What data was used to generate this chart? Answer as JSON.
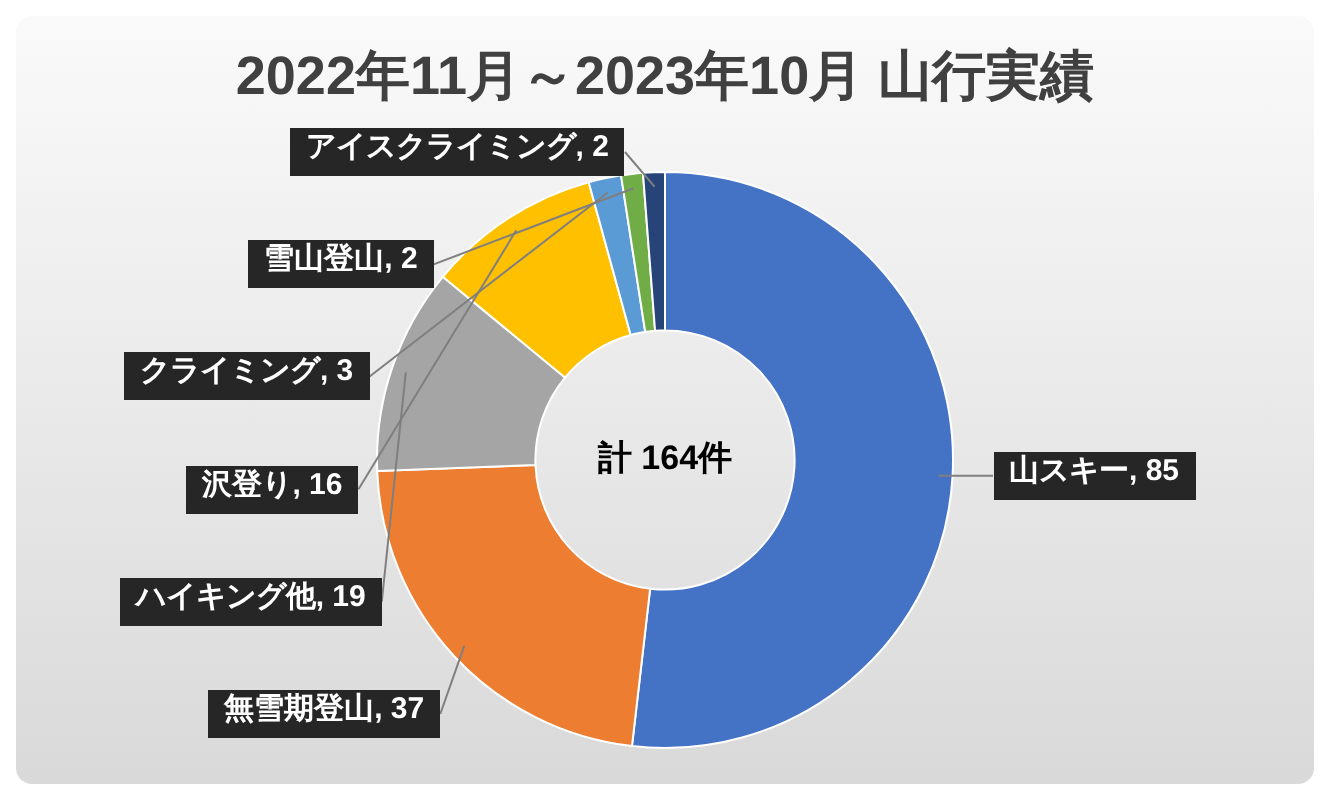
{
  "chart_data": {
    "type": "donut",
    "title": "2022年11月～2023年10月 山行実績",
    "categories": [
      "山スキー",
      "無雪期登山",
      "ハイキング他",
      "沢登り",
      "クライミング",
      "雪山登山",
      "アイスクライミング"
    ],
    "values": [
      85,
      37,
      19,
      16,
      3,
      2,
      2
    ],
    "value_labels": [
      ", 85",
      ", 37",
      ", 19",
      ", 16",
      ", 3",
      ", 2",
      ", 2"
    ],
    "colors": [
      "#4472c4",
      "#ed7d31",
      "#a5a5a5",
      "#ffc000",
      "#5b9bd5",
      "#70ad47",
      "#264478"
    ],
    "legend": false,
    "annotations": [
      "計 164件"
    ]
  }
}
